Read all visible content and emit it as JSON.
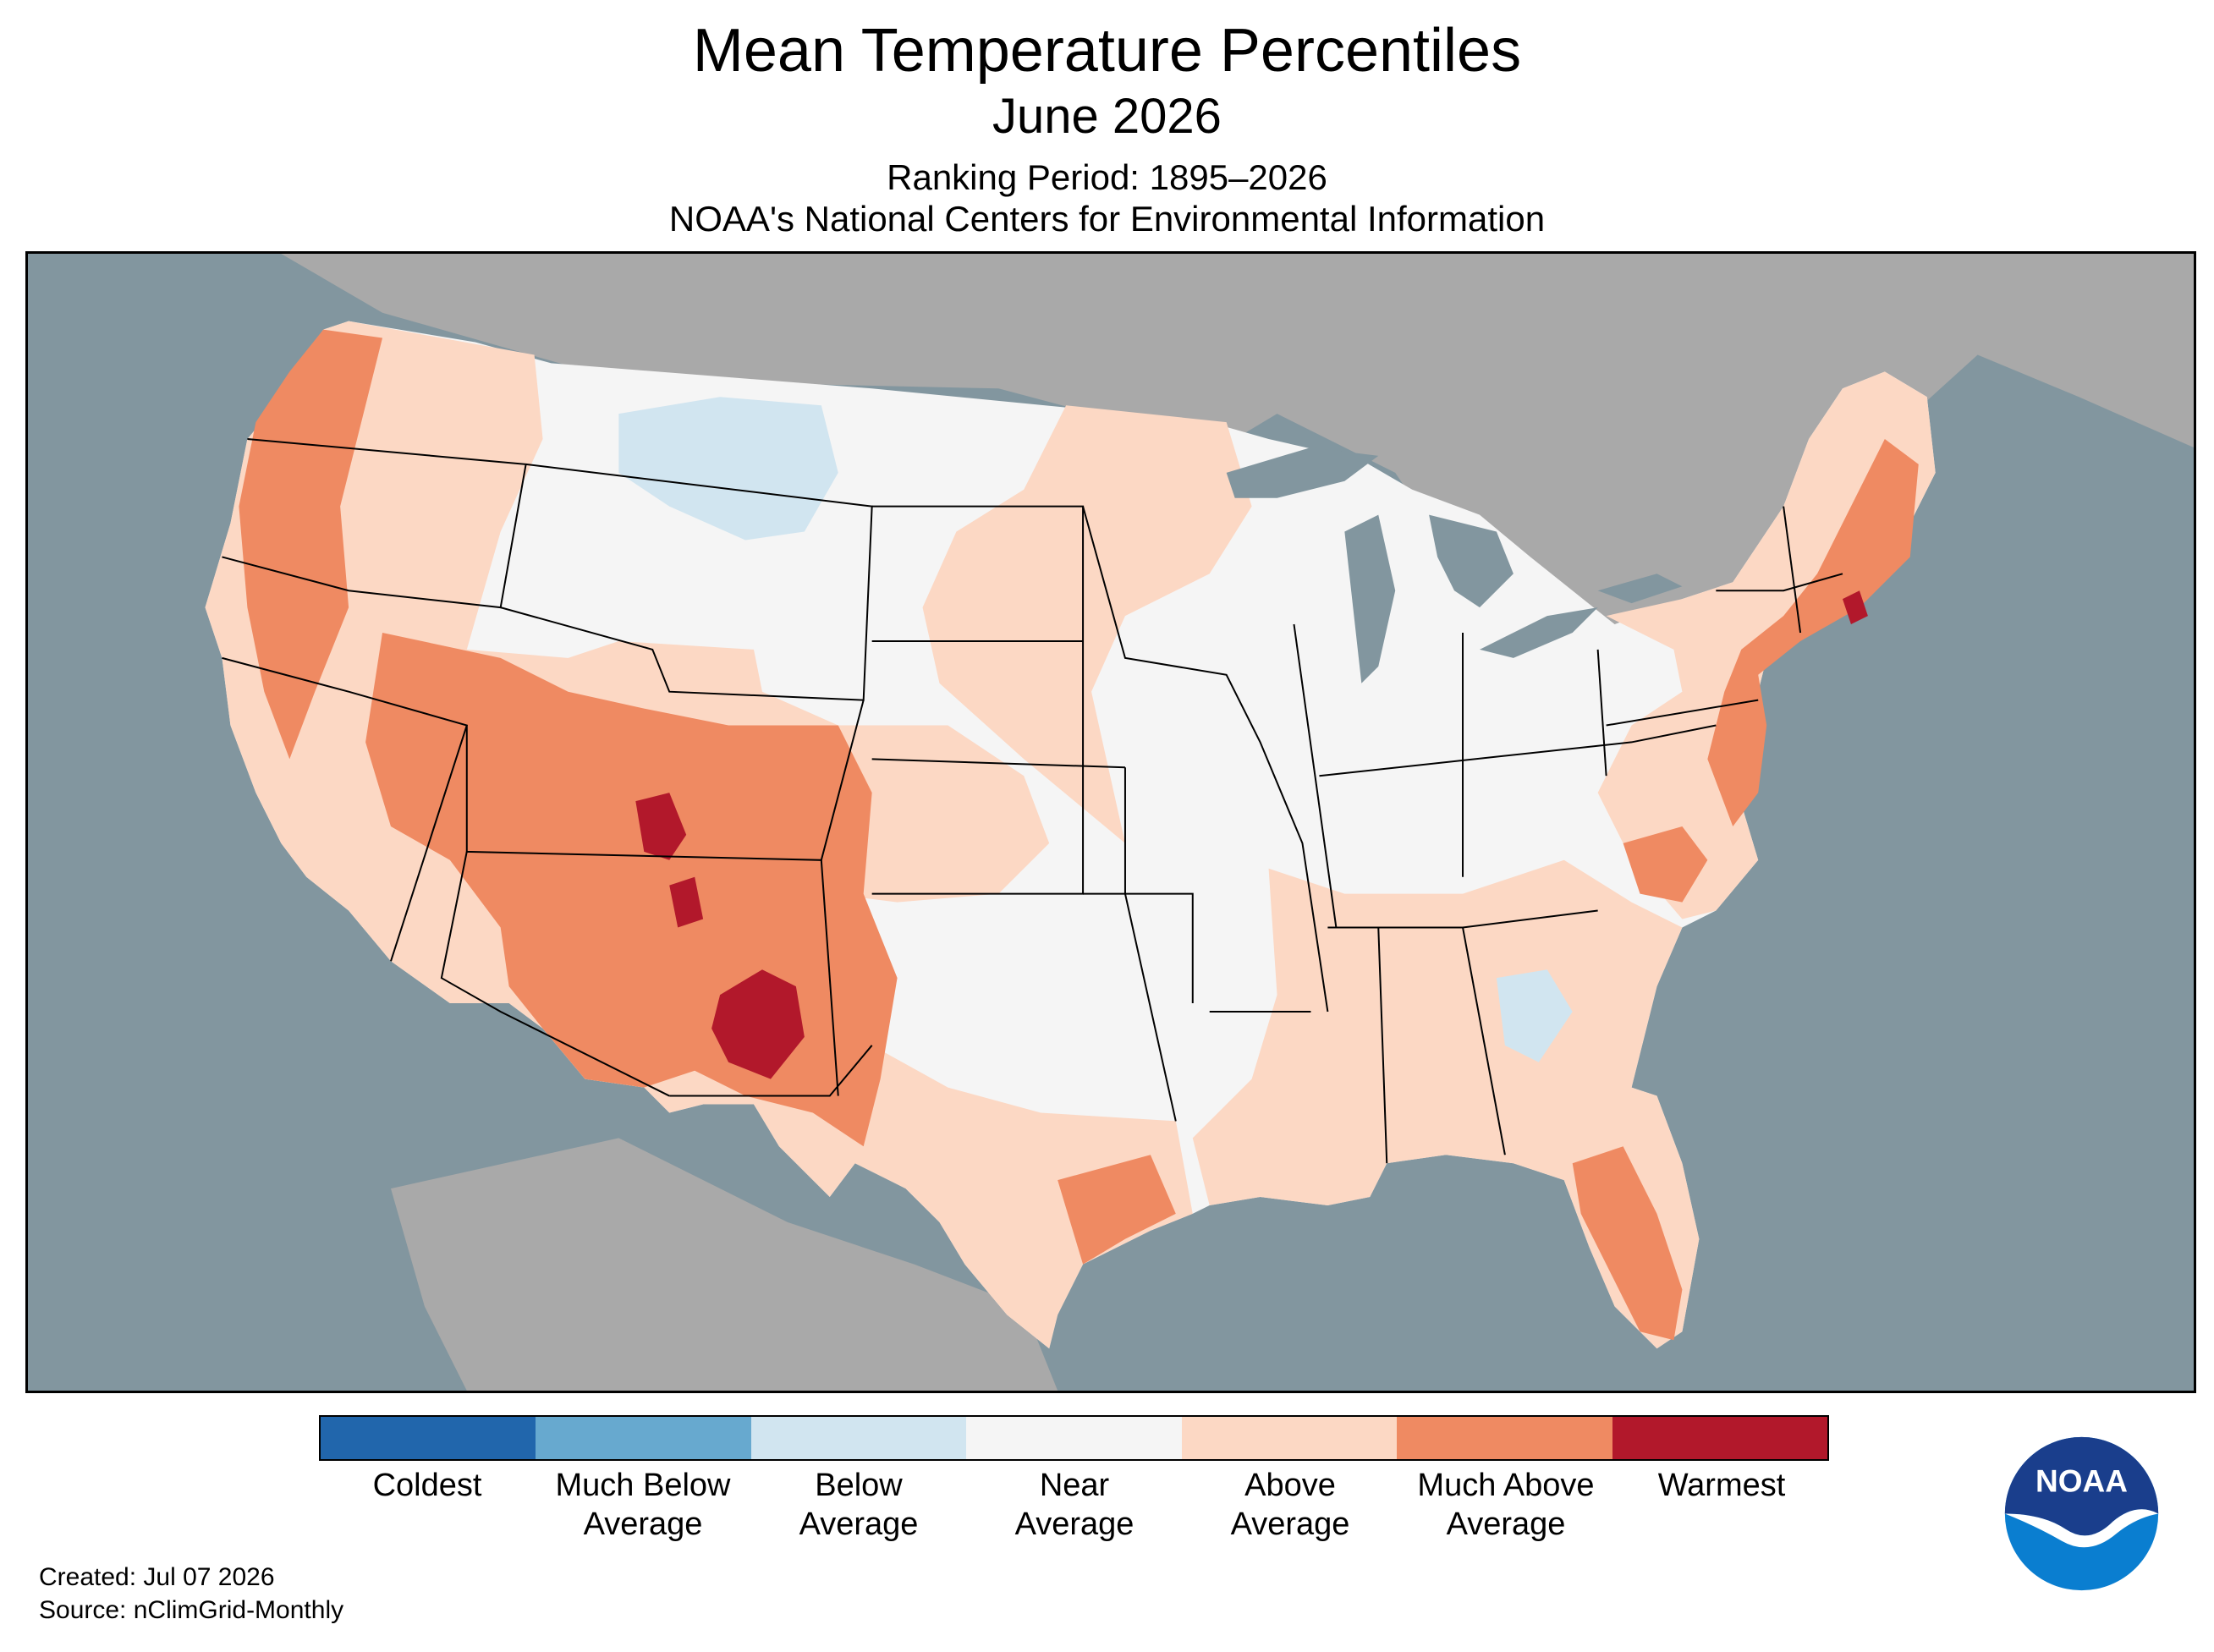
{
  "header": {
    "title": "Mean Temperature Percentiles",
    "subtitle": "June 2026",
    "ranking_period": "Ranking Period: 1895–2026",
    "organization": "NOAA's National Centers for Environmental Information"
  },
  "map": {
    "region": "Contiguous United States",
    "colors": {
      "water": "#82969f",
      "land_outside": "#a9a9a9",
      "state_border": "#000000"
    },
    "regions": [
      {
        "category": "near_average",
        "area": "Montana, Wyoming, Dakotas, Midwest, Ohio Valley, Southeast"
      },
      {
        "category": "below_average",
        "area": "northern Montana, scattered Alabama/Georgia"
      },
      {
        "category": "above_average",
        "area": "Pacific Northwest interior, Plains, Texas, Southeast coast, Northeast"
      },
      {
        "category": "much_above_average",
        "area": "West Coast, Nevada, Utah, Arizona, Colorado, New Mexico, Florida, Northeast coast"
      },
      {
        "category": "warmest",
        "area": "southwestern Utah, southern New Mexico, Rhode Island"
      }
    ]
  },
  "legend": {
    "items": [
      {
        "key": "coldest",
        "label": "Coldest",
        "color": "#2166ac"
      },
      {
        "key": "much_below_average",
        "label": "Much Below Average",
        "color": "#67a9cf"
      },
      {
        "key": "below_average",
        "label": "Below Average",
        "color": "#d1e5f0"
      },
      {
        "key": "near_average",
        "label": "Near Average",
        "color": "#f5f5f5"
      },
      {
        "key": "above_average",
        "label": "Above Average",
        "color": "#fcd8c4"
      },
      {
        "key": "much_above_average",
        "label": "Much Above Average",
        "color": "#ef8a62"
      },
      {
        "key": "warmest",
        "label": "Warmest",
        "color": "#b2182b"
      }
    ]
  },
  "footer": {
    "created": "Created: Jul 07 2026",
    "source": "Source: nClimGrid-Monthly"
  },
  "logo": {
    "text": "NOAA",
    "colors": {
      "navy": "#1a3e8c",
      "blue": "#0a7ed0",
      "white": "#ffffff"
    }
  }
}
